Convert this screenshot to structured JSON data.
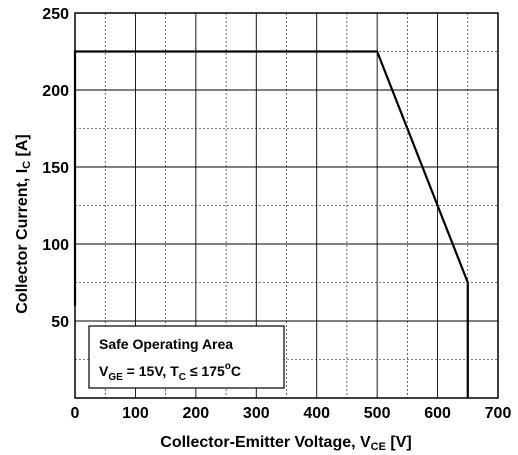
{
  "chart_data": {
    "type": "line",
    "xlabel_main": "Collector-Emitter Voltage, V",
    "xlabel_sub": "CE",
    "xlabel_tail": " [V]",
    "ylabel_main": "Collector Current, I",
    "ylabel_sub": "C",
    "ylabel_tail": " [A]",
    "xlim": [
      0,
      700
    ],
    "ylim": [
      0,
      250
    ],
    "x_ticks": [
      0,
      100,
      200,
      300,
      400,
      500,
      600,
      700
    ],
    "x_tick_labels": [
      "0",
      "100",
      "200",
      "300",
      "400",
      "500",
      "600",
      "700"
    ],
    "y_ticks": [
      50,
      100,
      150,
      200,
      250
    ],
    "y_tick_labels": [
      "50",
      "100",
      "150",
      "200",
      "250"
    ],
    "x_minor_step": 50,
    "y_minor_step": 25,
    "grid": true,
    "series": [
      {
        "color": "#000000",
        "points": [
          [
            0,
            60
          ],
          [
            0,
            225
          ],
          [
            500,
            225
          ],
          [
            650,
            75
          ],
          [
            650,
            0
          ]
        ]
      }
    ],
    "legend": {
      "line1": "Safe Operating Area",
      "line2_v": "V",
      "line2_vsub": "GE",
      "line2_mid": " = 15V, T",
      "line2_tsub": "C",
      "line2_le": " ≤ 175",
      "line2_deg": "o",
      "line2_tail": "C",
      "placement": "bottom-left"
    }
  }
}
